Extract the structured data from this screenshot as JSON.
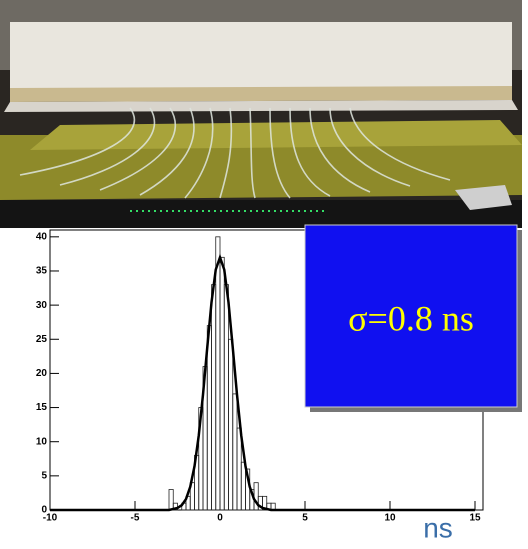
{
  "chart_data": {
    "type": "histogram",
    "bins": [
      -3,
      -2.75,
      -2.5,
      -2.25,
      -2,
      -1.75,
      -1.5,
      -1.25,
      -1,
      -0.75,
      -0.5,
      -0.25,
      0,
      0.25,
      0.5,
      0.75,
      1,
      1.25,
      1.5,
      1.75,
      2,
      2.25,
      2.5,
      2.75,
      3,
      3.25,
      3.5
    ],
    "counts": [
      3,
      1,
      0,
      1,
      2,
      4,
      8,
      15,
      21,
      27,
      33,
      40,
      37,
      33,
      25,
      17,
      12,
      7,
      6,
      3,
      4,
      2,
      2,
      1,
      1,
      0
    ],
    "fit": {
      "x": [
        -10,
        -3,
        -2.5,
        -2.25,
        -2,
        -1.75,
        -1.5,
        -1.25,
        -1,
        -0.75,
        -0.5,
        -0.25,
        0,
        0.25,
        0.5,
        0.75,
        1,
        1.25,
        1.5,
        1.75,
        2,
        2.25,
        2.5,
        3,
        15
      ],
      "y": [
        0,
        0,
        0.3,
        0.7,
        1.6,
        3.4,
        6.4,
        10.9,
        16.9,
        23.8,
        30.4,
        35.2,
        37,
        35.2,
        30.4,
        23.8,
        16.9,
        10.9,
        6.4,
        3.4,
        1.6,
        0.7,
        0.3,
        0,
        0
      ]
    },
    "annotation": "σ=0.8 ns",
    "x_label": "ns",
    "xlim": [
      -10,
      15
    ],
    "ylim": [
      0,
      41
    ],
    "xticks": [
      -10,
      -5,
      0,
      5,
      10,
      15
    ],
    "yticks": [
      0,
      5,
      10,
      15,
      20,
      25,
      30,
      35,
      40
    ]
  }
}
